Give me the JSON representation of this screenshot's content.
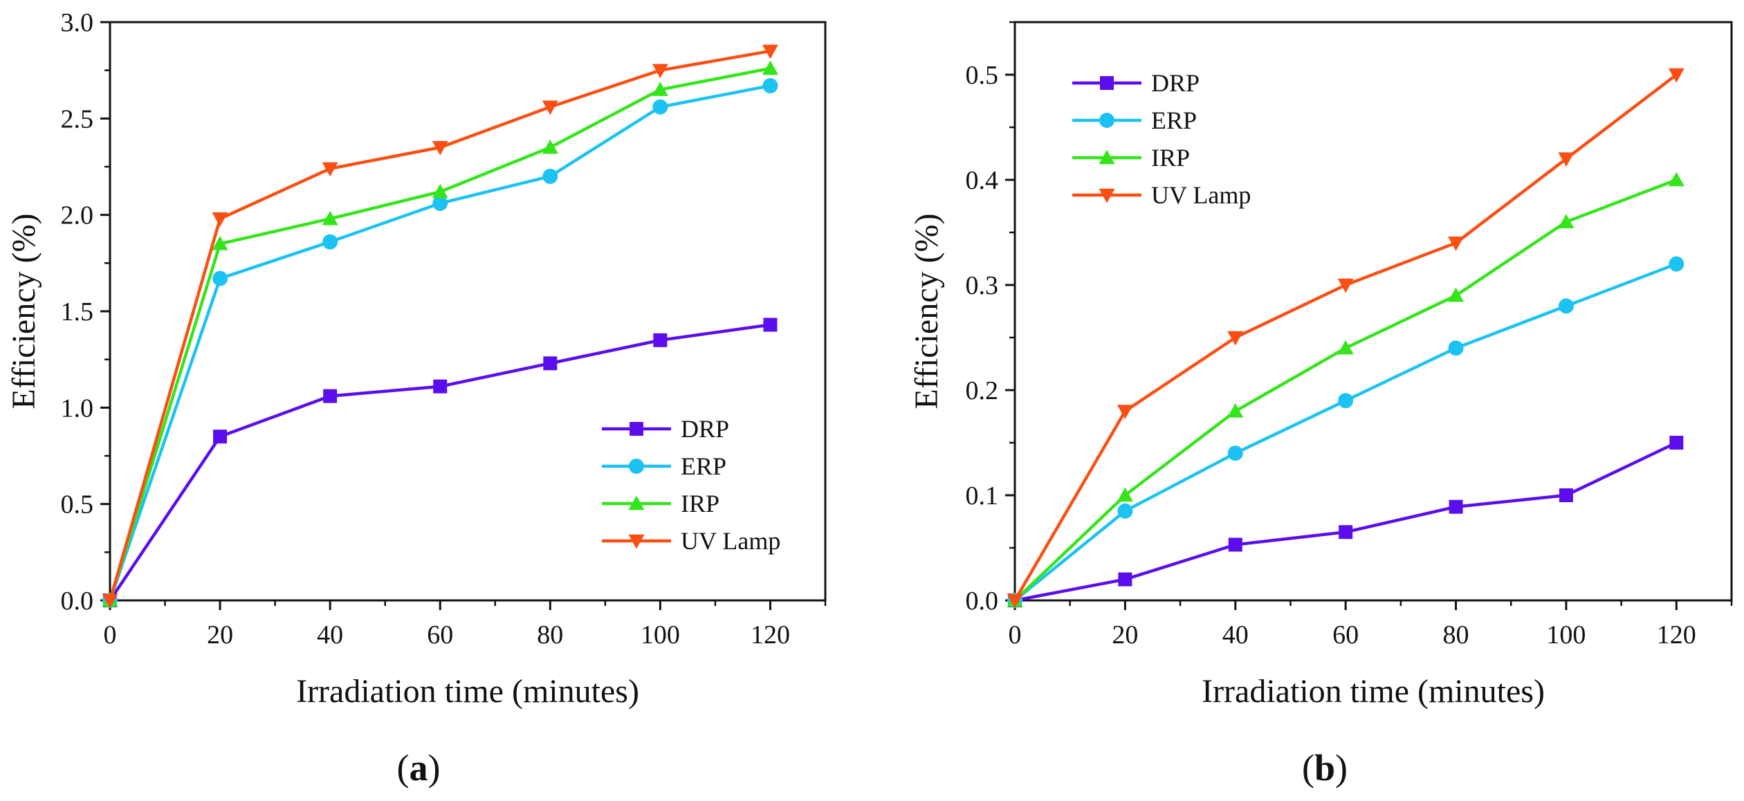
{
  "chart_data": [
    {
      "type": "line",
      "panel": "a",
      "xlabel": "Irradiation time (minutes)",
      "ylabel": "Efficiency (%)",
      "x": [
        0,
        20,
        40,
        60,
        80,
        100,
        120
      ],
      "xlim": [
        0,
        130
      ],
      "ylim": [
        0,
        3.0
      ],
      "xticks": [
        "0",
        "20",
        "40",
        "60",
        "80",
        "100",
        "120"
      ],
      "yticks": [
        "0.0",
        "0.5",
        "1.0",
        "1.5",
        "2.0",
        "2.5",
        "3.0"
      ],
      "legend_position": "bottom-right",
      "series": [
        {
          "name": "DRP",
          "color": "#5B0EEB",
          "marker": "square",
          "values": [
            0,
            0.85,
            1.06,
            1.11,
            1.23,
            1.35,
            1.43
          ]
        },
        {
          "name": "ERP",
          "color": "#1CC3F2",
          "marker": "circle",
          "values": [
            0,
            1.67,
            1.86,
            2.06,
            2.2,
            2.56,
            2.67
          ]
        },
        {
          "name": "IRP",
          "color": "#34E51C",
          "marker": "triangle-up",
          "values": [
            0,
            1.85,
            1.98,
            2.12,
            2.35,
            2.65,
            2.76
          ]
        },
        {
          "name": "UV Lamp",
          "color": "#FA4F12",
          "marker": "triangle-down",
          "values": [
            0,
            1.98,
            2.24,
            2.35,
            2.56,
            2.75,
            2.85
          ]
        }
      ]
    },
    {
      "type": "line",
      "panel": "b",
      "xlabel": "Irradiation time (minutes)",
      "ylabel": "Efficiency (%)",
      "x": [
        0,
        20,
        40,
        60,
        80,
        100,
        120
      ],
      "xlim": [
        0,
        130
      ],
      "ylim": [
        0,
        0.55
      ],
      "xticks": [
        "0",
        "20",
        "40",
        "60",
        "80",
        "100",
        "120"
      ],
      "yticks": [
        "0.0",
        "0.1",
        "0.2",
        "0.3",
        "0.4",
        "0.5"
      ],
      "legend_position": "top-left",
      "series": [
        {
          "name": "DRP",
          "color": "#5B0EEB",
          "marker": "square",
          "values": [
            0,
            0.02,
            0.053,
            0.065,
            0.089,
            0.1,
            0.15
          ]
        },
        {
          "name": "ERP",
          "color": "#1CC3F2",
          "marker": "circle",
          "values": [
            0,
            0.085,
            0.14,
            0.19,
            0.24,
            0.28,
            0.32
          ]
        },
        {
          "name": "IRP",
          "color": "#34E51C",
          "marker": "triangle-up",
          "values": [
            0,
            0.1,
            0.18,
            0.24,
            0.29,
            0.36,
            0.4
          ]
        },
        {
          "name": "UV Lamp",
          "color": "#FA4F12",
          "marker": "triangle-down",
          "values": [
            0,
            0.18,
            0.25,
            0.3,
            0.34,
            0.42,
            0.5
          ]
        }
      ]
    }
  ],
  "captions": {
    "a": {
      "open": "(",
      "letter": "a",
      "close": ")"
    },
    "b": {
      "open": "(",
      "letter": "b",
      "close": ")"
    }
  }
}
